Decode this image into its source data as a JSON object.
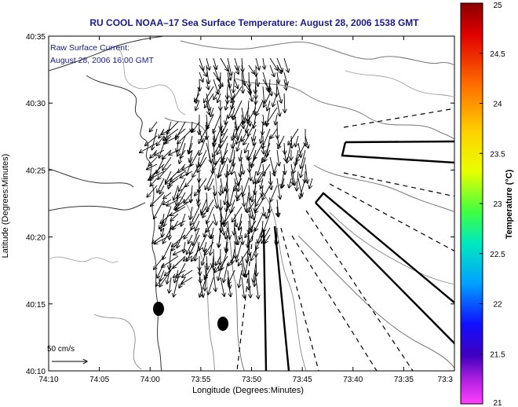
{
  "chart_data": {
    "type": "map",
    "title": "RU COOL  NOAA–17  Sea Surface Temperature:  August 28, 2006 1538 GMT",
    "annotation": [
      "Raw Surface Current:",
      "August 28, 2006 16:00 GMT"
    ],
    "xlabel": "Longitude (Degrees:Minutes)",
    "ylabel": "Latitude (Degrees:Minutes)",
    "x_ticks": [
      "74:10",
      "74:05",
      "74:00",
      "73:55",
      "73:50",
      "73:45",
      "73:40",
      "73:35",
      "73:3"
    ],
    "y_ticks": [
      "40:35",
      "40:30",
      "40:25",
      "40:20",
      "40:15",
      "40:10"
    ],
    "colorbar": {
      "label": "Temperature (°C)",
      "ticks": [
        "25",
        "24.5",
        "24",
        "23.5",
        "23",
        "22.5",
        "22",
        "21.5",
        "21"
      ],
      "range": [
        21,
        25
      ]
    },
    "scale_label": "50 cm/s"
  }
}
